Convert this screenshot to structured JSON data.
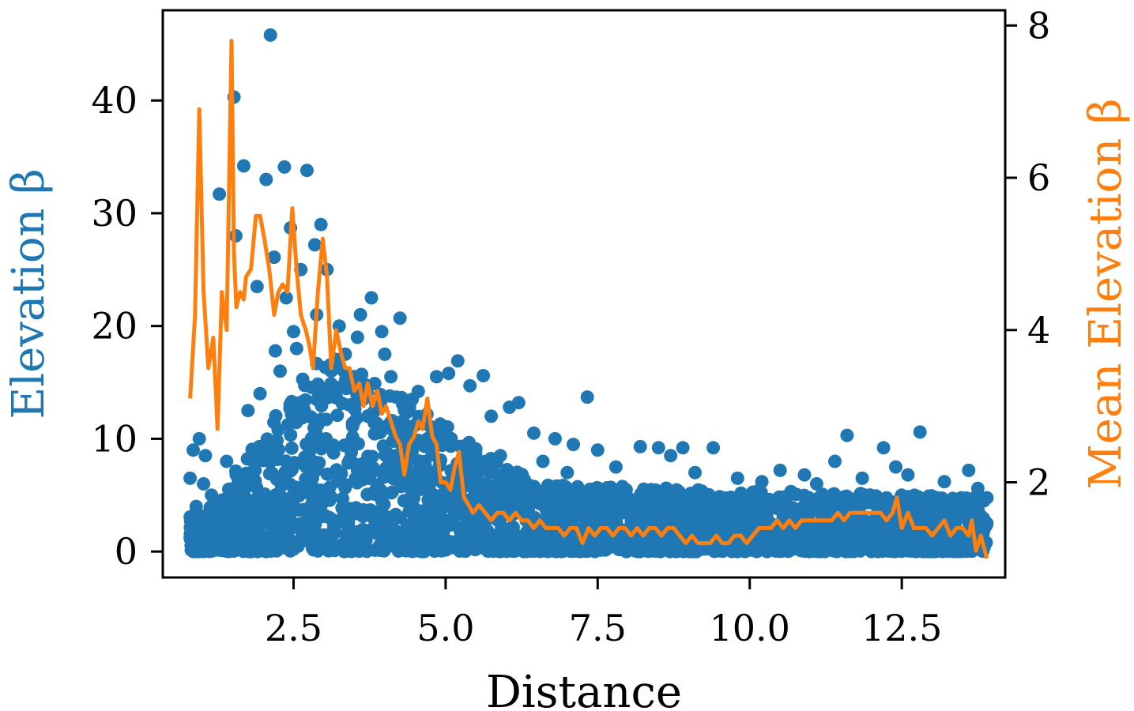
{
  "chart_data": {
    "type": "scatter",
    "xlabel": "Distance",
    "ylabel_left": "Elevation β",
    "ylabel_right": "Mean Elevation β",
    "xlim": [
      0.35,
      14.2
    ],
    "ylim_left": [
      -2.3,
      48.0
    ],
    "ylim_right": [
      0.75,
      8.2
    ],
    "x_ticks": [
      2.5,
      5.0,
      7.5,
      10.0,
      12.5
    ],
    "x_tick_labels": [
      "2.5",
      "5.0",
      "7.5",
      "10.0",
      "12.5"
    ],
    "y_left_ticks": [
      0,
      10,
      20,
      30,
      40
    ],
    "y_left_tick_labels": [
      "0",
      "10",
      "20",
      "30",
      "40"
    ],
    "y_right_ticks": [
      2,
      4,
      6,
      8
    ],
    "y_right_tick_labels": [
      "2",
      "4",
      "6",
      "8"
    ],
    "colors": {
      "scatter": "#1f77b4",
      "line": "#ff7f0e"
    },
    "series": [
      {
        "name": "Elevation β",
        "kind": "scatter",
        "axis": "left",
        "x": [
          2.12,
          1.52,
          1.68,
          2.35,
          2.72,
          1.28,
          2.05,
          1.55,
          2.18,
          2.45,
          2.62,
          2.95,
          2.38,
          2.85,
          3.05,
          3.25,
          3.78,
          4.25,
          3.95,
          3.6,
          4.0,
          4.55,
          4.85,
          5.05,
          5.2,
          5.4,
          5.62,
          6.05,
          6.2,
          6.8,
          7.33,
          7.1,
          7.5,
          8.2,
          8.5,
          8.9,
          9.4,
          10.5,
          11.4,
          11.6,
          12.2,
          12.8,
          13.6,
          13.75,
          0.85,
          0.95,
          1.05,
          2.2,
          2.5,
          1.9,
          1.75,
          3.35,
          3.55,
          4.1,
          4.45,
          5.75,
          6.45,
          8.7,
          10.9,
          12.4,
          1.02,
          0.9,
          0.8,
          1.15,
          1.4,
          1.95,
          2.28,
          2.55,
          2.88,
          3.12,
          3.42,
          3.72,
          4.32,
          4.7,
          5.3,
          5.9,
          6.6,
          7.0,
          7.8,
          9.1,
          9.8,
          10.2,
          11.1,
          11.85,
          12.6,
          13.2,
          13.85,
          13.9
        ],
        "y": [
          45.8,
          40.3,
          34.2,
          34.1,
          33.8,
          31.7,
          33.0,
          28.0,
          26.1,
          28.7,
          25.0,
          29.0,
          22.5,
          27.2,
          25.0,
          20.0,
          22.5,
          20.7,
          19.5,
          21.0,
          17.5,
          14.2,
          15.5,
          15.8,
          16.9,
          14.7,
          15.6,
          12.8,
          13.2,
          10.0,
          13.7,
          9.5,
          9.0,
          9.3,
          9.2,
          9.2,
          9.2,
          7.2,
          8.0,
          10.3,
          9.2,
          10.6,
          7.2,
          5.6,
          9.0,
          10.0,
          8.5,
          17.8,
          19.5,
          23.5,
          12.5,
          17.5,
          19.0,
          15.5,
          13.5,
          12.0,
          10.5,
          8.5,
          6.8,
          7.5,
          6.0,
          4.0,
          6.5,
          5.0,
          8.0,
          14.0,
          16.0,
          18.0,
          21.0,
          16.0,
          13.0,
          12.0,
          11.0,
          10.0,
          9.0,
          8.5,
          8.0,
          7.0,
          7.5,
          7.0,
          6.5,
          6.2,
          6.0,
          6.5,
          6.8,
          6.2,
          4.5,
          2.5
        ]
      },
      {
        "name": "Mean Elevation β",
        "kind": "line",
        "axis": "right",
        "x": [
          0.8,
          0.88,
          0.95,
          1.02,
          1.1,
          1.18,
          1.25,
          1.32,
          1.4,
          1.48,
          1.52,
          1.56,
          1.62,
          1.68,
          1.72,
          1.8,
          1.88,
          1.95,
          2.02,
          2.1,
          2.18,
          2.25,
          2.32,
          2.4,
          2.48,
          2.55,
          2.62,
          2.7,
          2.76,
          2.82,
          2.9,
          2.98,
          3.05,
          3.12,
          3.2,
          3.28,
          3.35,
          3.42,
          3.5,
          3.58,
          3.65,
          3.72,
          3.8,
          3.88,
          3.95,
          4.02,
          4.1,
          4.18,
          4.25,
          4.32,
          4.4,
          4.48,
          4.55,
          4.62,
          4.7,
          4.78,
          4.85,
          4.92,
          5.0,
          5.08,
          5.15,
          5.22,
          5.3,
          5.38,
          5.45,
          5.55,
          5.65,
          5.75,
          5.85,
          5.95,
          6.05,
          6.15,
          6.25,
          6.35,
          6.45,
          6.55,
          6.65,
          6.75,
          6.85,
          6.95,
          7.05,
          7.15,
          7.25,
          7.35,
          7.45,
          7.55,
          7.65,
          7.75,
          7.85,
          7.95,
          8.05,
          8.15,
          8.25,
          8.35,
          8.45,
          8.55,
          8.65,
          8.75,
          8.85,
          8.95,
          9.05,
          9.15,
          9.25,
          9.35,
          9.45,
          9.55,
          9.65,
          9.75,
          9.85,
          9.95,
          10.05,
          10.15,
          10.25,
          10.35,
          10.45,
          10.55,
          10.65,
          10.75,
          10.85,
          10.95,
          11.05,
          11.15,
          11.25,
          11.35,
          11.45,
          11.55,
          11.65,
          11.75,
          11.85,
          11.95,
          12.05,
          12.15,
          12.25,
          12.35,
          12.42,
          12.5,
          12.6,
          12.7,
          12.8,
          12.9,
          13.0,
          13.1,
          13.2,
          13.3,
          13.4,
          13.5,
          13.6,
          13.65,
          13.72,
          13.8,
          13.9
        ],
        "y": [
          3.1,
          4.2,
          6.9,
          4.5,
          3.5,
          3.9,
          2.7,
          4.5,
          4.0,
          7.8,
          5.0,
          4.3,
          4.5,
          4.4,
          4.7,
          4.8,
          5.5,
          5.5,
          5.2,
          4.8,
          4.2,
          4.5,
          4.6,
          4.5,
          5.6,
          4.8,
          4.2,
          4.0,
          3.8,
          3.5,
          4.5,
          5.2,
          4.7,
          3.5,
          4.0,
          3.7,
          3.5,
          3.5,
          3.2,
          3.3,
          3.0,
          3.3,
          3.0,
          3.2,
          2.9,
          3.0,
          2.8,
          2.6,
          2.5,
          2.1,
          2.5,
          2.6,
          2.8,
          2.7,
          3.1,
          2.6,
          2.5,
          2.0,
          2.0,
          1.9,
          2.2,
          2.4,
          1.8,
          1.7,
          1.6,
          1.7,
          1.6,
          1.5,
          1.6,
          1.6,
          1.5,
          1.6,
          1.5,
          1.5,
          1.4,
          1.5,
          1.4,
          1.4,
          1.4,
          1.3,
          1.4,
          1.4,
          1.2,
          1.4,
          1.3,
          1.4,
          1.4,
          1.3,
          1.4,
          1.4,
          1.3,
          1.4,
          1.3,
          1.4,
          1.4,
          1.3,
          1.4,
          1.4,
          1.3,
          1.2,
          1.3,
          1.2,
          1.2,
          1.2,
          1.3,
          1.2,
          1.2,
          1.3,
          1.3,
          1.2,
          1.3,
          1.4,
          1.4,
          1.4,
          1.5,
          1.4,
          1.5,
          1.4,
          1.5,
          1.5,
          1.5,
          1.5,
          1.5,
          1.5,
          1.6,
          1.5,
          1.6,
          1.6,
          1.6,
          1.6,
          1.6,
          1.6,
          1.5,
          1.6,
          1.8,
          1.4,
          1.6,
          1.4,
          1.4,
          1.4,
          1.3,
          1.4,
          1.5,
          1.3,
          1.4,
          1.4,
          1.3,
          1.5,
          1.1,
          1.3,
          1.0
        ]
      }
    ],
    "dense_cloud": {
      "note": "Dense cluster of points forming the blue mass near the bottom of the plot",
      "seed": 7,
      "count": 2600,
      "x_range": [
        0.8,
        13.9
      ]
    }
  }
}
